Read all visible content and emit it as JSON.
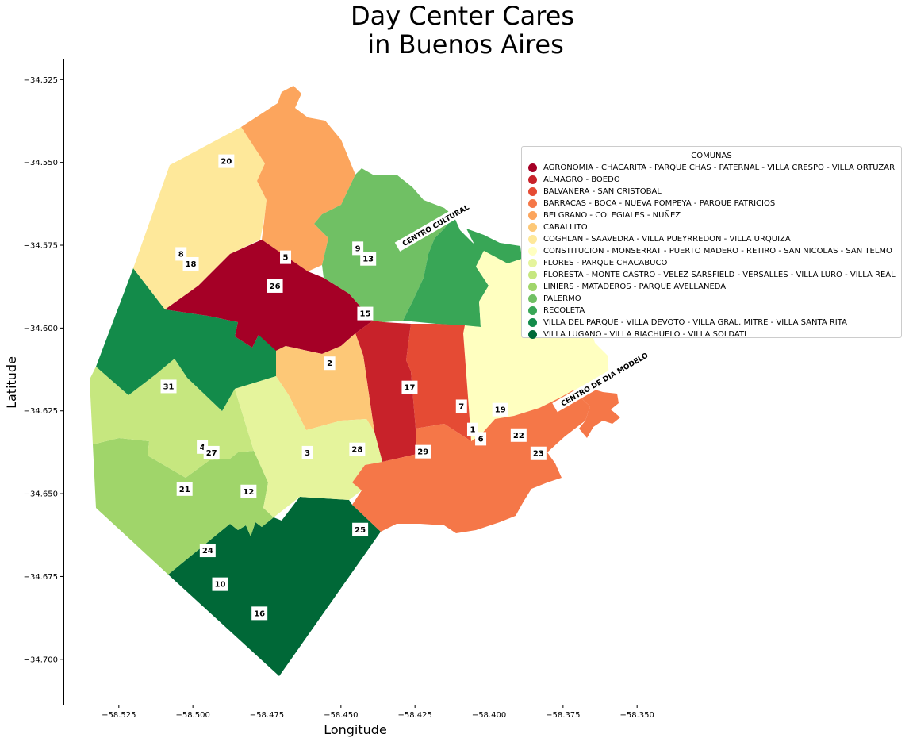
{
  "title_lines": [
    "Day Center Cares",
    "in Buenos Aires"
  ],
  "xlabel": "Longitude",
  "ylabel": "Latitude",
  "legend": {
    "title": "COMUNAS",
    "items": [
      {
        "label": "AGRONOMIA - CHACARITA -  PARQUE CHAS -  PATERNAL - VILLA CRESPO - VILLA ORTUZAR",
        "color": "#a50026"
      },
      {
        "label": "ALMAGRO - BOEDO",
        "color": "#c8222a"
      },
      {
        "label": "BALVANERA - SAN CRISTOBAL",
        "color": "#e54b34"
      },
      {
        "label": "BARRACAS - BOCA - NUEVA POMPEYA - PARQUE PATRICIOS",
        "color": "#f57748"
      },
      {
        "label": "BELGRANO - COLEGIALES - NUÑEZ",
        "color": "#fca55d"
      },
      {
        "label": "CABALLITO",
        "color": "#fdc877"
      },
      {
        "label": "COGHLAN - SAAVEDRA - VILLA PUEYRREDON - VILLA URQUIZA",
        "color": "#fee89a"
      },
      {
        "label": "CONSTITUCION - MONSERRAT - PUERTO MADERO -  RETIRO - SAN NICOLAS - SAN TELMO",
        "color": "#ffffc0"
      },
      {
        "label": "FLORES - PARQUE CHACABUCO",
        "color": "#e5f49c"
      },
      {
        "label": "FLORESTA - MONTE CASTRO - VELEZ SARSFIELD - VERSALLES - VILLA LURO - VILLA REAL",
        "color": "#c6e77f"
      },
      {
        "label": "LINIERS - MATADEROS - PARQUE AVELLANEDA",
        "color": "#a0d56a"
      },
      {
        "label": "PALERMO",
        "color": "#70c064"
      },
      {
        "label": "RECOLETA",
        "color": "#38a656"
      },
      {
        "label": "VILLA DEL PARQUE - VILLA  DEVOTO - VILLA GRAL. MITRE - VILLA SANTA RITA",
        "color": "#138b4a"
      },
      {
        "label": "VILLA LUGANO - VILLA RIACHUELO - VILLA SOLDATI",
        "color": "#006837"
      }
    ]
  },
  "axes": {
    "x_ticks": [
      {
        "value": -58.525,
        "label": "−58.525"
      },
      {
        "value": -58.5,
        "label": "−58.500"
      },
      {
        "value": -58.475,
        "label": "−58.475"
      },
      {
        "value": -58.45,
        "label": "−58.450"
      },
      {
        "value": -58.425,
        "label": "−58.425"
      },
      {
        "value": -58.4,
        "label": "−58.400"
      },
      {
        "value": -58.375,
        "label": "−58.375"
      },
      {
        "value": -58.35,
        "label": "−58.350"
      }
    ],
    "y_ticks": [
      {
        "value": -34.525,
        "label": "−34.525"
      },
      {
        "value": -34.55,
        "label": "−34.550"
      },
      {
        "value": -34.575,
        "label": "−34.575"
      },
      {
        "value": -34.6,
        "label": "−34.600"
      },
      {
        "value": -34.625,
        "label": "−34.625"
      },
      {
        "value": -34.65,
        "label": "−34.650"
      },
      {
        "value": -34.675,
        "label": "−34.675"
      },
      {
        "value": -34.7,
        "label": "−34.700"
      }
    ],
    "xlim": [
      -58.5437,
      -58.3463
    ],
    "ylim": [
      -34.7137,
      -34.5187
    ]
  },
  "center_labels": [
    {
      "text": "CENTRO CULTURAL",
      "lon": -58.418,
      "lat": -34.569
    },
    {
      "text": "CENTRO DE DIA MODELO",
      "lon": -58.361,
      "lat": -34.6155
    }
  ],
  "point_labels": [
    {
      "text": "20",
      "lon": -58.4887,
      "lat": -34.5495
    },
    {
      "text": "8",
      "lon": -58.504,
      "lat": -34.5775
    },
    {
      "text": "18",
      "lon": -58.5007,
      "lat": -34.5805
    },
    {
      "text": "5",
      "lon": -58.4687,
      "lat": -34.5785
    },
    {
      "text": "9",
      "lon": -58.4443,
      "lat": -34.5758
    },
    {
      "text": "13",
      "lon": -58.4408,
      "lat": -34.579
    },
    {
      "text": "26",
      "lon": -58.4723,
      "lat": -34.5872
    },
    {
      "text": "15",
      "lon": -58.4418,
      "lat": -34.5955
    },
    {
      "text": "2",
      "lon": -58.4538,
      "lat": -34.6105
    },
    {
      "text": "17",
      "lon": -58.4268,
      "lat": -34.6178
    },
    {
      "text": "7",
      "lon": -58.4093,
      "lat": -34.6235
    },
    {
      "text": "19",
      "lon": -58.3962,
      "lat": -34.6245
    },
    {
      "text": "1",
      "lon": -58.4055,
      "lat": -34.6305
    },
    {
      "text": "6",
      "lon": -58.4028,
      "lat": -34.6333
    },
    {
      "text": "22",
      "lon": -58.39,
      "lat": -34.6322
    },
    {
      "text": "23",
      "lon": -58.3833,
      "lat": -34.6377
    },
    {
      "text": "29",
      "lon": -58.4223,
      "lat": -34.6372
    },
    {
      "text": "28",
      "lon": -58.4445,
      "lat": -34.6365
    },
    {
      "text": "3",
      "lon": -58.4613,
      "lat": -34.6375
    },
    {
      "text": "31",
      "lon": -58.5082,
      "lat": -34.6175
    },
    {
      "text": "4",
      "lon": -58.4968,
      "lat": -34.6358
    },
    {
      "text": "27",
      "lon": -58.4937,
      "lat": -34.6375
    },
    {
      "text": "21",
      "lon": -58.5028,
      "lat": -34.6485
    },
    {
      "text": "12",
      "lon": -58.4812,
      "lat": -34.6492
    },
    {
      "text": "25",
      "lon": -58.4435,
      "lat": -34.6607
    },
    {
      "text": "24",
      "lon": -58.495,
      "lat": -34.667
    },
    {
      "text": "10",
      "lon": -58.4908,
      "lat": -34.6772
    },
    {
      "text": "16",
      "lon": -58.4775,
      "lat": -34.686
    }
  ]
}
